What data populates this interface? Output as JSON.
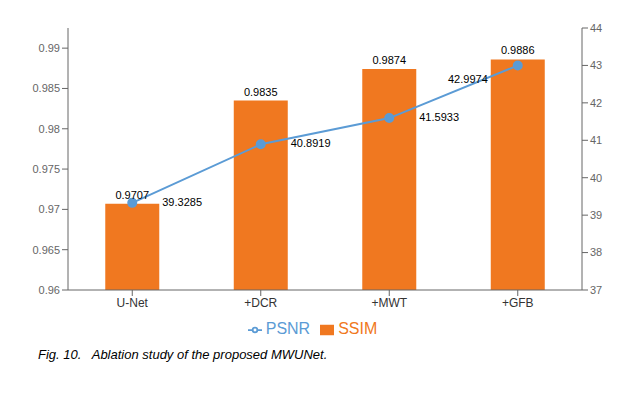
{
  "chart_data": {
    "type": "bar",
    "categories": [
      "U-Net",
      "+DCR",
      "+MWT",
      "+GFB"
    ],
    "series": [
      {
        "name": "SSIM",
        "type": "bar",
        "color": "#F07820",
        "values": [
          0.9707,
          0.9835,
          0.9874,
          0.9886
        ]
      },
      {
        "name": "PSNR",
        "type": "line",
        "axis": "y2",
        "color": "#5B9BD5",
        "marker": "circle",
        "values": [
          39.3285,
          40.8919,
          41.5933,
          42.9974
        ]
      }
    ],
    "ylim": [
      0.96,
      0.9925
    ],
    "yticks": [
      0.96,
      0.965,
      0.97,
      0.975,
      0.98,
      0.985,
      0.99
    ],
    "y2lim": [
      37,
      44
    ],
    "y2ticks": [
      37,
      38,
      39,
      40,
      41,
      42,
      43,
      44
    ],
    "data_labels": true,
    "legend": "bottom",
    "caption": "Fig. 10.   Ablation study of the proposed MWUNet."
  }
}
